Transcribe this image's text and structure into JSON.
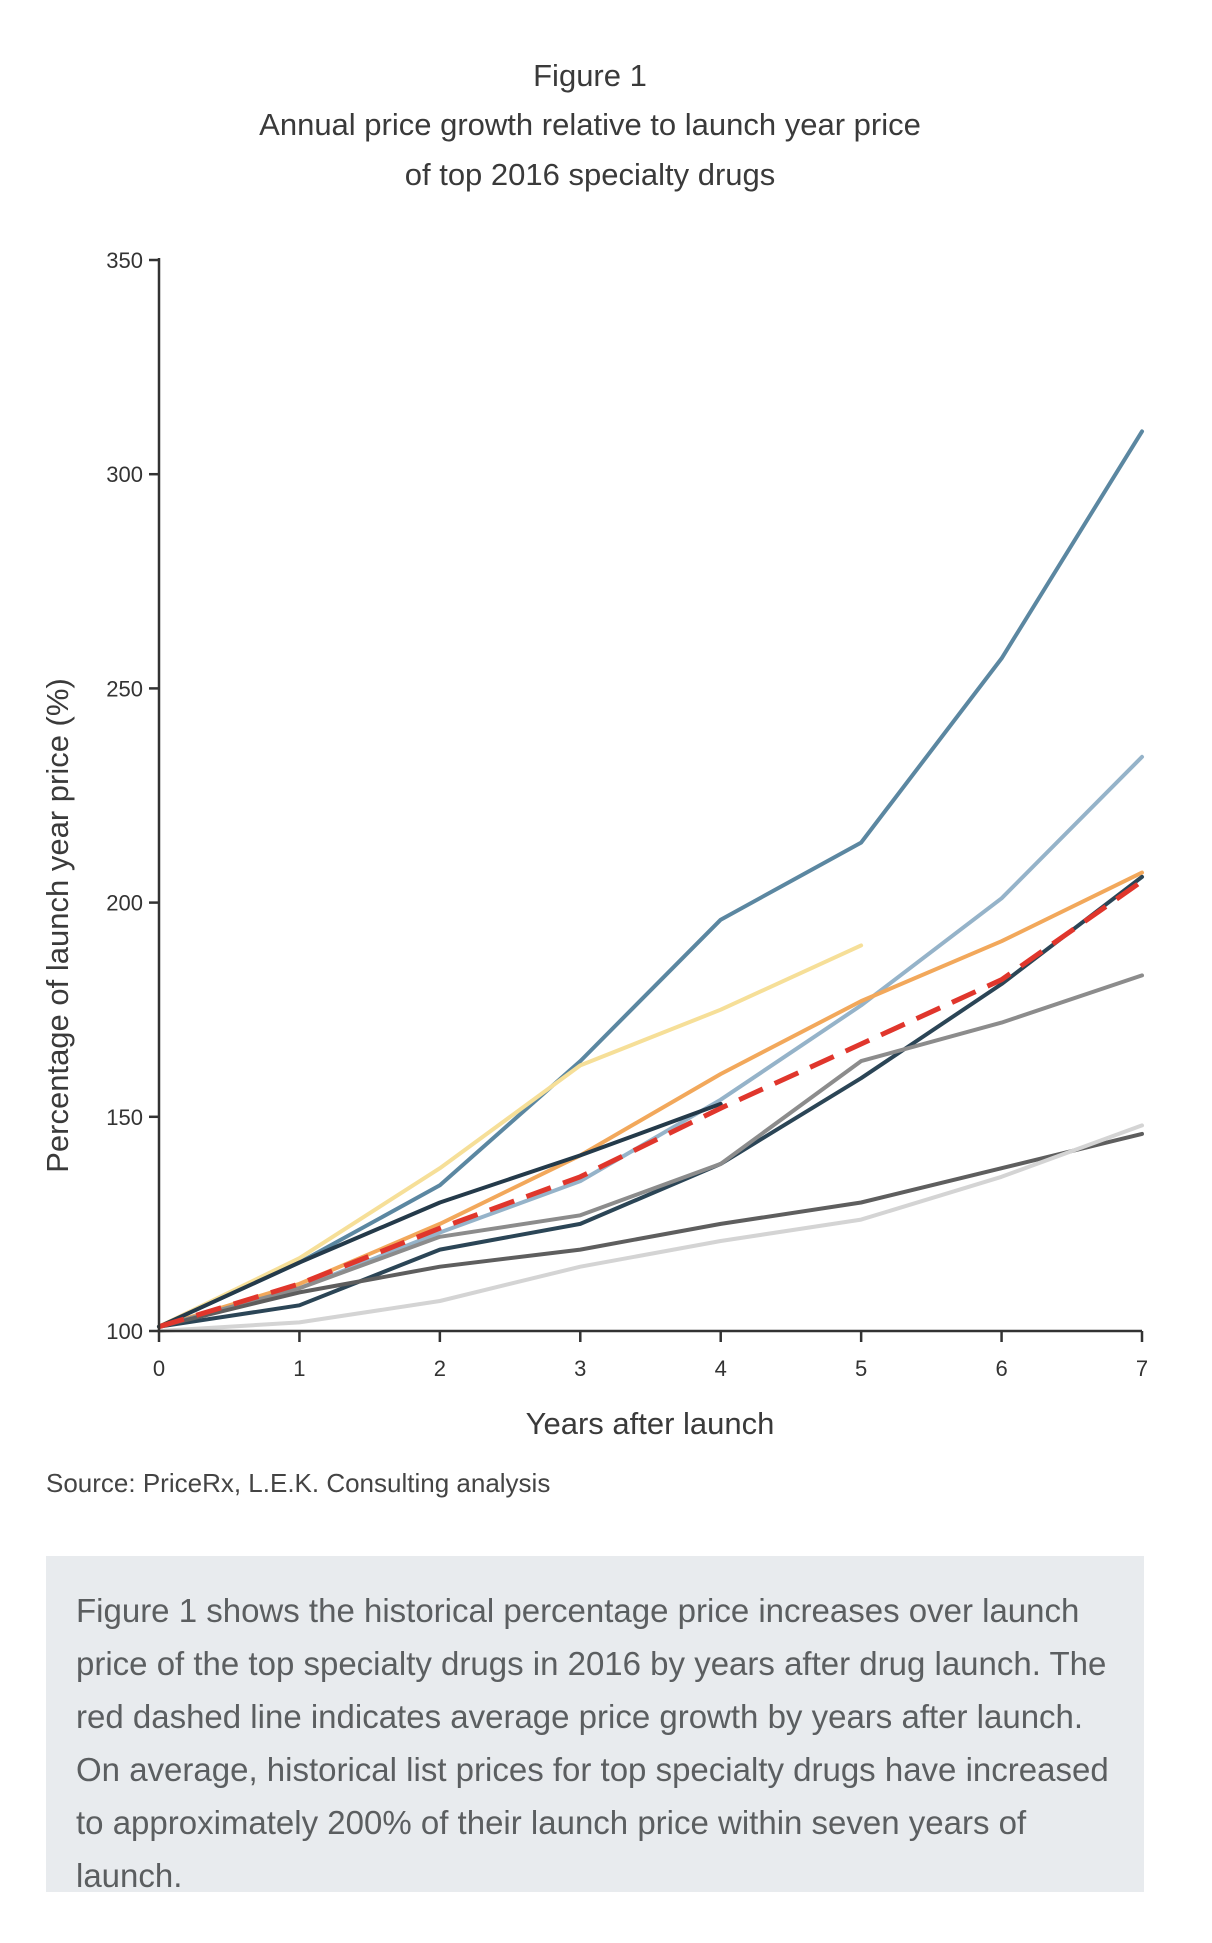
{
  "figure": {
    "label": "Figure 1",
    "title": "Annual price growth relative to launch year price\nof top 2016 specialty drugs"
  },
  "source": "Source: PriceRx, L.E.K. Consulting analysis",
  "caption": "Figure 1 shows the historical percentage price increases over launch price of the top specialty drugs in 2016 by years after drug launch. The red dashed line indicates average price growth by years after launch. On average, historical list prices for top specialty drugs have increased to approximately 200% of their launch price within seven years of launch.",
  "colors": {
    "caption_bg": "#e8ebee",
    "average_line": "#e0362c",
    "axis": "#333333"
  },
  "chart_data": {
    "type": "line",
    "title": "Annual price growth relative to launch year price of top 2016 specialty drugs",
    "xlabel": "Years after launch",
    "ylabel": "Percentage of launch year price (%)",
    "x_ticks": [
      0,
      1,
      2,
      3,
      4,
      5,
      6,
      7
    ],
    "y_ticks": [
      100,
      150,
      200,
      250,
      300,
      350
    ],
    "xlim": [
      0,
      7
    ],
    "ylim": [
      100,
      350
    ],
    "grid": false,
    "legend": "none",
    "series": [
      {
        "color": "#5b87a1",
        "width": 4,
        "dashed": false,
        "x": [
          0,
          1,
          2,
          3,
          4,
          5,
          6,
          7
        ],
        "y": [
          101,
          116,
          134,
          163,
          196,
          214,
          257,
          310
        ]
      },
      {
        "color": "#95b3c9",
        "width": 4,
        "dashed": false,
        "x": [
          0,
          1,
          2,
          3,
          4,
          5,
          6,
          7
        ],
        "y": [
          101,
          110,
          123,
          135,
          154,
          176,
          201,
          234
        ]
      },
      {
        "color": "#f2a85b",
        "width": 4,
        "dashed": false,
        "x": [
          0,
          1,
          2,
          3,
          4,
          5,
          6,
          7
        ],
        "y": [
          101,
          111,
          125,
          141,
          160,
          177,
          191,
          207
        ]
      },
      {
        "color": "#2b4556",
        "width": 4,
        "dashed": false,
        "x": [
          0,
          1,
          2,
          3,
          4,
          5,
          6,
          7
        ],
        "y": [
          101,
          106,
          119,
          125,
          139,
          159,
          181,
          206
        ]
      },
      {
        "color": "#8c8c8c",
        "width": 4,
        "dashed": false,
        "x": [
          0,
          1,
          2,
          3,
          4,
          5,
          6,
          7
        ],
        "y": [
          101,
          110,
          122,
          127,
          139,
          163,
          172,
          183
        ]
      },
      {
        "color": "#5e5e5e",
        "width": 4,
        "dashed": false,
        "x": [
          0,
          1,
          2,
          3,
          4,
          5,
          6,
          7
        ],
        "y": [
          101,
          109,
          115,
          119,
          125,
          130,
          138,
          146
        ]
      },
      {
        "color": "#d4d4d4",
        "width": 4,
        "dashed": false,
        "x": [
          0,
          1,
          2,
          3,
          4,
          5,
          6,
          7
        ],
        "y": [
          100,
          102,
          107,
          115,
          121,
          126,
          136,
          148
        ]
      },
      {
        "color": "#f6df98",
        "width": 4,
        "dashed": false,
        "x": [
          0,
          1,
          2,
          3,
          4,
          5
        ],
        "y": [
          101,
          117,
          138,
          162,
          175,
          190
        ]
      },
      {
        "color": "#243a4a",
        "width": 4,
        "dashed": false,
        "x": [
          0,
          1,
          2,
          3,
          4
        ],
        "y": [
          101,
          116,
          130,
          141,
          153
        ]
      },
      {
        "color": "#e0362c",
        "width": 5,
        "dashed": true,
        "x": [
          0,
          1,
          2,
          3,
          4,
          5,
          6,
          7
        ],
        "y": [
          101,
          111,
          124,
          136,
          152,
          167,
          182,
          205
        ]
      }
    ]
  }
}
